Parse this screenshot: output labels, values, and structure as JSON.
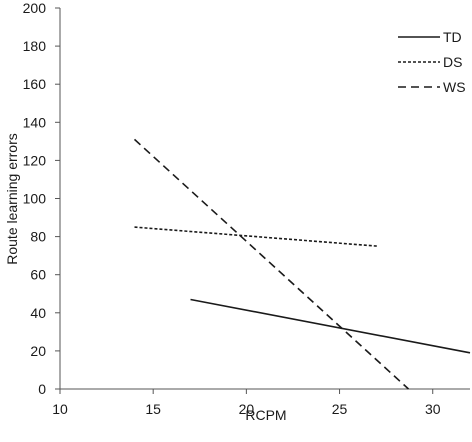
{
  "chart_data": {
    "type": "line",
    "title": "",
    "xlabel": "RCPM",
    "ylabel": "Route learning errors",
    "xlim": [
      10,
      32
    ],
    "ylim": [
      0,
      200
    ],
    "xticks": [
      10,
      15,
      20,
      25,
      30
    ],
    "yticks": [
      0,
      20,
      40,
      60,
      80,
      100,
      120,
      140,
      160,
      180,
      200
    ],
    "grid": false,
    "legend_position": "top-right",
    "series": [
      {
        "name": "TD",
        "style": "solid",
        "color": "#1a1a1a",
        "x": [
          17,
          32
        ],
        "y": [
          47,
          19
        ]
      },
      {
        "name": "DS",
        "style": "dotted",
        "color": "#1a1a1a",
        "x": [
          14,
          27
        ],
        "y": [
          85,
          75
        ]
      },
      {
        "name": "WS",
        "style": "dashed",
        "color": "#1a1a1a",
        "x": [
          14,
          28.7
        ],
        "y": [
          131,
          0
        ]
      }
    ]
  }
}
